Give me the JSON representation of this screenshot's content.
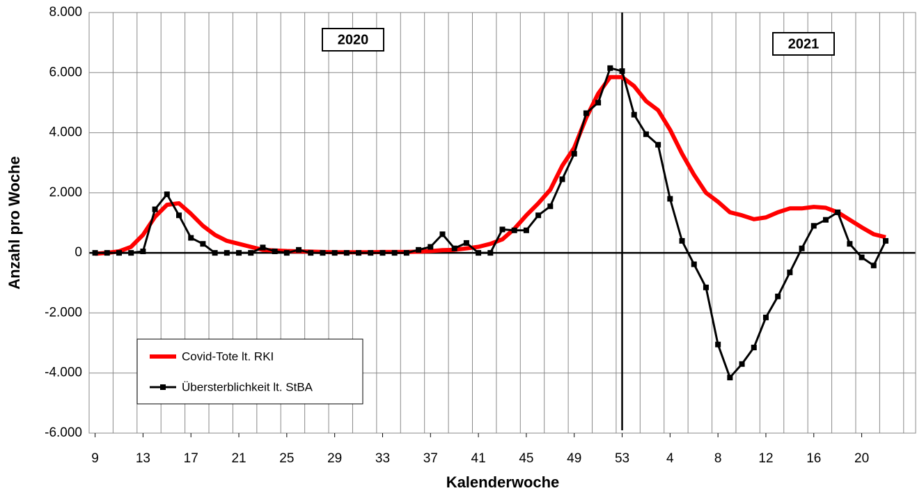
{
  "chart_data": {
    "type": "line",
    "x_label": "Kalenderwoche",
    "y_label": "Anzahl pro Woche",
    "categories": [
      "9",
      null,
      null,
      null,
      "13",
      null,
      null,
      null,
      "17",
      null,
      null,
      null,
      "21",
      null,
      null,
      null,
      "25",
      null,
      null,
      null,
      "29",
      null,
      null,
      null,
      "33",
      null,
      null,
      null,
      "37",
      null,
      null,
      null,
      "41",
      null,
      null,
      null,
      "45",
      null,
      null,
      null,
      "49",
      null,
      null,
      null,
      "53",
      null,
      null,
      null,
      "4",
      null,
      null,
      null,
      "8",
      null,
      null,
      null,
      "12",
      null,
      null,
      null,
      "16",
      null,
      null,
      null,
      "20",
      null,
      null,
      null,
      null
    ],
    "series": [
      {
        "name": "Covid-Tote lt. RKI",
        "color": "#ff0000",
        "marker": false,
        "values": [
          -30,
          0,
          50,
          200,
          600,
          1200,
          1600,
          1650,
          1300,
          900,
          600,
          400,
          300,
          200,
          100,
          80,
          60,
          50,
          40,
          30,
          20,
          20,
          20,
          20,
          30,
          30,
          30,
          40,
          60,
          90,
          100,
          150,
          200,
          300,
          450,
          800,
          1250,
          1650,
          2100,
          2900,
          3500,
          4500,
          5300,
          5850,
          5850,
          5550,
          5050,
          4750,
          4100,
          3300,
          2600,
          2000,
          1700,
          1350,
          1250,
          1120,
          1180,
          1350,
          1480,
          1480,
          1530,
          1500,
          1350,
          1100,
          850,
          620,
          520,
          null,
          null
        ]
      },
      {
        "name": "Übersterblichkeit lt. StBA",
        "color": "#000000",
        "marker": true,
        "values": [
          0,
          0,
          0,
          0,
          50,
          1450,
          1950,
          1250,
          500,
          300,
          0,
          0,
          0,
          0,
          180,
          50,
          0,
          100,
          0,
          0,
          0,
          0,
          0,
          0,
          0,
          0,
          0,
          100,
          200,
          620,
          150,
          330,
          0,
          0,
          780,
          750,
          750,
          1250,
          1550,
          2450,
          3300,
          4650,
          5000,
          6150,
          6050,
          4600,
          3950,
          3600,
          1800,
          400,
          -380,
          -1150,
          -3050,
          -4150,
          -3700,
          -3150,
          -2150,
          -1450,
          -650,
          150,
          900,
          1100,
          1350,
          300,
          -150,
          -420,
          400,
          null,
          null
        ]
      }
    ],
    "ylim": [
      -6000,
      8000
    ],
    "yticks": [
      {
        "value": -6000,
        "label": "-6.000"
      },
      {
        "value": -4000,
        "label": "-4.000"
      },
      {
        "value": -2000,
        "label": "-2.000"
      },
      0,
      {
        "value": 2000,
        "label": "2.000"
      },
      {
        "value": 4000,
        "label": "4.000"
      },
      {
        "value": 6000,
        "label": "6.000"
      },
      {
        "value": 8000,
        "label": "8.000"
      }
    ],
    "grid": true,
    "legend": "lower left",
    "annotations": [
      "2020",
      "2021"
    ]
  }
}
